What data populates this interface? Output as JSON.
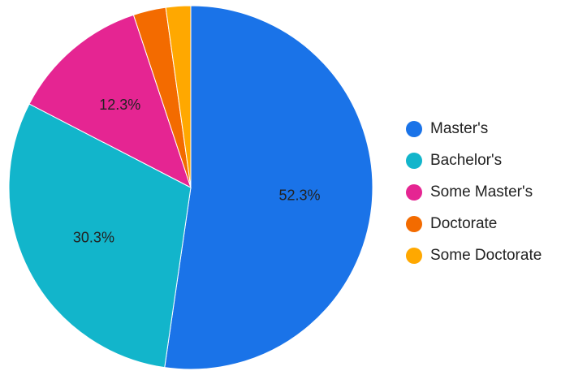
{
  "chart_data": {
    "type": "pie",
    "title": "",
    "legend_position": "right",
    "slices": [
      {
        "name": "Master's",
        "value": 52.3,
        "label": "52.3%",
        "color": "#1A73E8"
      },
      {
        "name": "Bachelor's",
        "value": 30.3,
        "label": "30.3%",
        "color": "#12B5CB"
      },
      {
        "name": "Some Master's",
        "value": 12.3,
        "label": "12.3%",
        "color": "#E52592"
      },
      {
        "name": "Doctorate",
        "value": 2.9,
        "label": "",
        "color": "#F36B00"
      },
      {
        "name": "Some Doctorate",
        "value": 2.2,
        "label": "",
        "color": "#FFA800"
      }
    ]
  }
}
